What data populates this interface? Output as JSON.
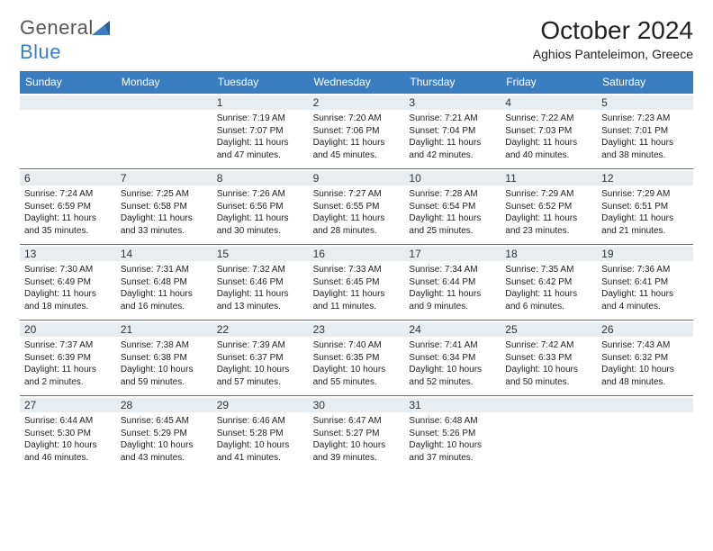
{
  "logo": {
    "text_general": "General",
    "text_blue": "Blue"
  },
  "title": "October 2024",
  "location": "Aghios Panteleimon, Greece",
  "colors": {
    "header_bg": "#3b7ec0",
    "header_text": "#ffffff",
    "daynum_bg": "#e8edf1",
    "border": "#3b7ec0",
    "text": "#222222",
    "logo_gray": "#555555",
    "logo_blue": "#3b7ec0"
  },
  "weekday_headers": [
    "Sunday",
    "Monday",
    "Tuesday",
    "Wednesday",
    "Thursday",
    "Friday",
    "Saturday"
  ],
  "cells": [
    {
      "day": "",
      "sunrise": "",
      "sunset": "",
      "daylight": ""
    },
    {
      "day": "",
      "sunrise": "",
      "sunset": "",
      "daylight": ""
    },
    {
      "day": "1",
      "sunrise": "Sunrise: 7:19 AM",
      "sunset": "Sunset: 7:07 PM",
      "daylight": "Daylight: 11 hours and 47 minutes."
    },
    {
      "day": "2",
      "sunrise": "Sunrise: 7:20 AM",
      "sunset": "Sunset: 7:06 PM",
      "daylight": "Daylight: 11 hours and 45 minutes."
    },
    {
      "day": "3",
      "sunrise": "Sunrise: 7:21 AM",
      "sunset": "Sunset: 7:04 PM",
      "daylight": "Daylight: 11 hours and 42 minutes."
    },
    {
      "day": "4",
      "sunrise": "Sunrise: 7:22 AM",
      "sunset": "Sunset: 7:03 PM",
      "daylight": "Daylight: 11 hours and 40 minutes."
    },
    {
      "day": "5",
      "sunrise": "Sunrise: 7:23 AM",
      "sunset": "Sunset: 7:01 PM",
      "daylight": "Daylight: 11 hours and 38 minutes."
    },
    {
      "day": "6",
      "sunrise": "Sunrise: 7:24 AM",
      "sunset": "Sunset: 6:59 PM",
      "daylight": "Daylight: 11 hours and 35 minutes."
    },
    {
      "day": "7",
      "sunrise": "Sunrise: 7:25 AM",
      "sunset": "Sunset: 6:58 PM",
      "daylight": "Daylight: 11 hours and 33 minutes."
    },
    {
      "day": "8",
      "sunrise": "Sunrise: 7:26 AM",
      "sunset": "Sunset: 6:56 PM",
      "daylight": "Daylight: 11 hours and 30 minutes."
    },
    {
      "day": "9",
      "sunrise": "Sunrise: 7:27 AM",
      "sunset": "Sunset: 6:55 PM",
      "daylight": "Daylight: 11 hours and 28 minutes."
    },
    {
      "day": "10",
      "sunrise": "Sunrise: 7:28 AM",
      "sunset": "Sunset: 6:54 PM",
      "daylight": "Daylight: 11 hours and 25 minutes."
    },
    {
      "day": "11",
      "sunrise": "Sunrise: 7:29 AM",
      "sunset": "Sunset: 6:52 PM",
      "daylight": "Daylight: 11 hours and 23 minutes."
    },
    {
      "day": "12",
      "sunrise": "Sunrise: 7:29 AM",
      "sunset": "Sunset: 6:51 PM",
      "daylight": "Daylight: 11 hours and 21 minutes."
    },
    {
      "day": "13",
      "sunrise": "Sunrise: 7:30 AM",
      "sunset": "Sunset: 6:49 PM",
      "daylight": "Daylight: 11 hours and 18 minutes."
    },
    {
      "day": "14",
      "sunrise": "Sunrise: 7:31 AM",
      "sunset": "Sunset: 6:48 PM",
      "daylight": "Daylight: 11 hours and 16 minutes."
    },
    {
      "day": "15",
      "sunrise": "Sunrise: 7:32 AM",
      "sunset": "Sunset: 6:46 PM",
      "daylight": "Daylight: 11 hours and 13 minutes."
    },
    {
      "day": "16",
      "sunrise": "Sunrise: 7:33 AM",
      "sunset": "Sunset: 6:45 PM",
      "daylight": "Daylight: 11 hours and 11 minutes."
    },
    {
      "day": "17",
      "sunrise": "Sunrise: 7:34 AM",
      "sunset": "Sunset: 6:44 PM",
      "daylight": "Daylight: 11 hours and 9 minutes."
    },
    {
      "day": "18",
      "sunrise": "Sunrise: 7:35 AM",
      "sunset": "Sunset: 6:42 PM",
      "daylight": "Daylight: 11 hours and 6 minutes."
    },
    {
      "day": "19",
      "sunrise": "Sunrise: 7:36 AM",
      "sunset": "Sunset: 6:41 PM",
      "daylight": "Daylight: 11 hours and 4 minutes."
    },
    {
      "day": "20",
      "sunrise": "Sunrise: 7:37 AM",
      "sunset": "Sunset: 6:39 PM",
      "daylight": "Daylight: 11 hours and 2 minutes."
    },
    {
      "day": "21",
      "sunrise": "Sunrise: 7:38 AM",
      "sunset": "Sunset: 6:38 PM",
      "daylight": "Daylight: 10 hours and 59 minutes."
    },
    {
      "day": "22",
      "sunrise": "Sunrise: 7:39 AM",
      "sunset": "Sunset: 6:37 PM",
      "daylight": "Daylight: 10 hours and 57 minutes."
    },
    {
      "day": "23",
      "sunrise": "Sunrise: 7:40 AM",
      "sunset": "Sunset: 6:35 PM",
      "daylight": "Daylight: 10 hours and 55 minutes."
    },
    {
      "day": "24",
      "sunrise": "Sunrise: 7:41 AM",
      "sunset": "Sunset: 6:34 PM",
      "daylight": "Daylight: 10 hours and 52 minutes."
    },
    {
      "day": "25",
      "sunrise": "Sunrise: 7:42 AM",
      "sunset": "Sunset: 6:33 PM",
      "daylight": "Daylight: 10 hours and 50 minutes."
    },
    {
      "day": "26",
      "sunrise": "Sunrise: 7:43 AM",
      "sunset": "Sunset: 6:32 PM",
      "daylight": "Daylight: 10 hours and 48 minutes."
    },
    {
      "day": "27",
      "sunrise": "Sunrise: 6:44 AM",
      "sunset": "Sunset: 5:30 PM",
      "daylight": "Daylight: 10 hours and 46 minutes."
    },
    {
      "day": "28",
      "sunrise": "Sunrise: 6:45 AM",
      "sunset": "Sunset: 5:29 PM",
      "daylight": "Daylight: 10 hours and 43 minutes."
    },
    {
      "day": "29",
      "sunrise": "Sunrise: 6:46 AM",
      "sunset": "Sunset: 5:28 PM",
      "daylight": "Daylight: 10 hours and 41 minutes."
    },
    {
      "day": "30",
      "sunrise": "Sunrise: 6:47 AM",
      "sunset": "Sunset: 5:27 PM",
      "daylight": "Daylight: 10 hours and 39 minutes."
    },
    {
      "day": "31",
      "sunrise": "Sunrise: 6:48 AM",
      "sunset": "Sunset: 5:26 PM",
      "daylight": "Daylight: 10 hours and 37 minutes."
    },
    {
      "day": "",
      "sunrise": "",
      "sunset": "",
      "daylight": ""
    },
    {
      "day": "",
      "sunrise": "",
      "sunset": "",
      "daylight": ""
    }
  ]
}
